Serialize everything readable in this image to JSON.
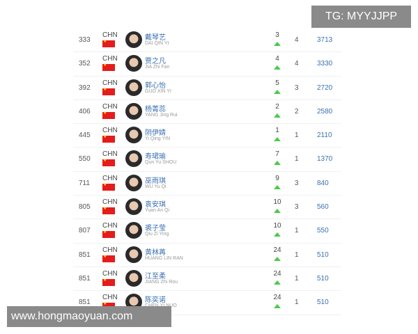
{
  "overlay": {
    "tg": "TG: MYYJJPP",
    "site": "www.hongmaoyuan.com"
  },
  "colors": {
    "link": "#3a6fb0",
    "up": "#4cc94c",
    "flag": "#e61b1b"
  },
  "rows": [
    {
      "rank": "333",
      "country": "CHN",
      "name_cn": "戴琴艺",
      "name_en": "DAI QIN YI",
      "change": "3",
      "col": "4",
      "points": "3713"
    },
    {
      "rank": "352",
      "country": "CHN",
      "name_cn": "贾之凡",
      "name_en": "JIA Zhi Fan",
      "change": "4",
      "col": "4",
      "points": "3330"
    },
    {
      "rank": "392",
      "country": "CHN",
      "name_cn": "郭心怡",
      "name_en": "GUO XIN YI",
      "change": "5",
      "col": "3",
      "points": "2720"
    },
    {
      "rank": "406",
      "country": "CHN",
      "name_cn": "杨菁蕊",
      "name_en": "YANG Jing Rui",
      "change": "2",
      "col": "2",
      "points": "2580"
    },
    {
      "rank": "445",
      "country": "CHN",
      "name_cn": "阴伊婧",
      "name_en": "Yi Qing YIN",
      "change": "1",
      "col": "1",
      "points": "2110"
    },
    {
      "rank": "550",
      "country": "CHN",
      "name_cn": "寿珺瑜",
      "name_en": "Qun Yu SHOU",
      "change": "7",
      "col": "1",
      "points": "1370"
    },
    {
      "rank": "711",
      "country": "CHN",
      "name_cn": "巫雨琪",
      "name_en": "WU Yu Qi",
      "change": "9",
      "col": "3",
      "points": "840"
    },
    {
      "rank": "805",
      "country": "CHN",
      "name_cn": "袁安琪",
      "name_en": "Yuan An Qi",
      "change": "10",
      "col": "3",
      "points": "560"
    },
    {
      "rank": "807",
      "country": "CHN",
      "name_cn": "裘子莹",
      "name_en": "Qiu Zi Ying",
      "change": "10",
      "col": "1",
      "points": "550"
    },
    {
      "rank": "851",
      "country": "CHN",
      "name_cn": "黄林苒",
      "name_en": "HUANG LIN RAN",
      "change": "24",
      "col": "1",
      "points": "510"
    },
    {
      "rank": "851",
      "country": "CHN",
      "name_cn": "江至柔",
      "name_en": "JIANG Zhi Rou",
      "change": "24",
      "col": "1",
      "points": "510"
    },
    {
      "rank": "851",
      "country": "CHN",
      "name_cn": "陈奕诺",
      "name_en": "CHEN YI NUO",
      "change": "24",
      "col": "1",
      "points": "510"
    }
  ]
}
